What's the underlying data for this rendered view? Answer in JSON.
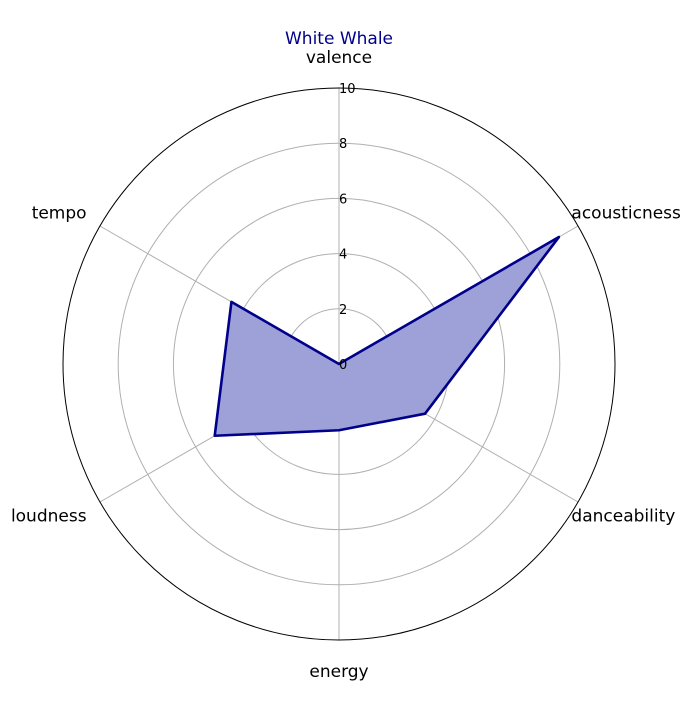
{
  "chart_data": {
    "type": "radar",
    "title": "White Whale",
    "axes": [
      "valence",
      "acousticness",
      "danceability",
      "energy",
      "loudness",
      "tempo"
    ],
    "series": [
      {
        "values": [
          0,
          9.2,
          3.6,
          2.4,
          5.2,
          4.5
        ]
      }
    ],
    "rlim": [
      0,
      10
    ],
    "rticks": [
      "0",
      "2",
      "4",
      "6",
      "8",
      "10"
    ],
    "grid": true,
    "colors": {
      "title": "#00008b",
      "line": "#00008b",
      "fill": "#9ea1d7",
      "grid": "#b0b0b0",
      "outer_circle": "#000000"
    }
  }
}
